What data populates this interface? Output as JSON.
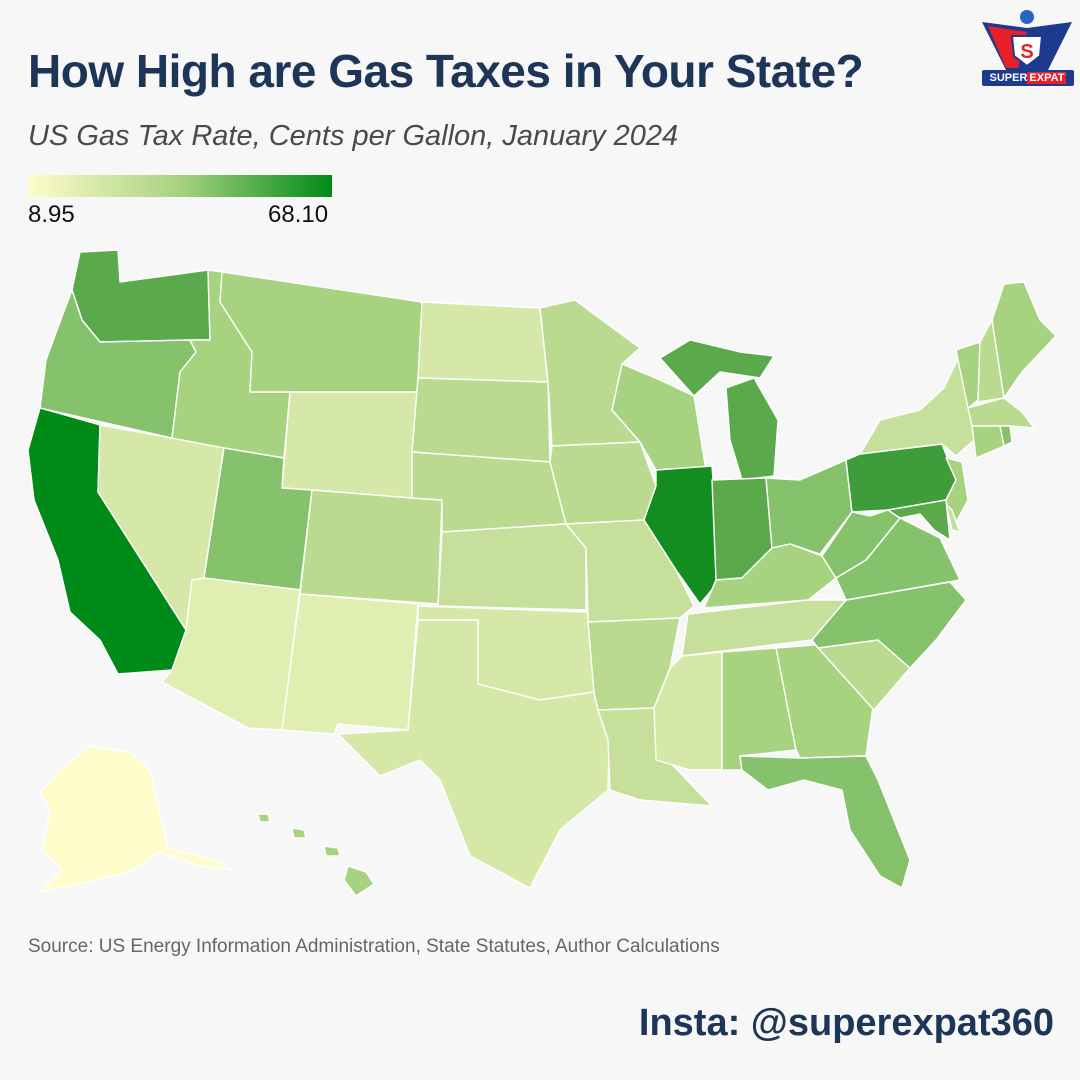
{
  "title": "How High are Gas Taxes in Your State?",
  "subtitle": "US Gas Tax Rate, Cents per Gallon, January 2024",
  "legend": {
    "min_label": "8.95",
    "max_label": "68.10",
    "min_value": 8.95,
    "max_value": 68.1,
    "min_color": "#fefccb",
    "mid_color": "#a7d27f",
    "max_color": "#008a17"
  },
  "logo": {
    "brand_part1": "SUPER",
    "brand_part2": "EXPAT"
  },
  "source": "Source: US Energy Information Administration, State Statutes, Author Calculations",
  "insta": "Insta: @superexpat360",
  "colors": {
    "title": "#1d3557",
    "background": "#f7f7f7",
    "state_border": "#ffffff"
  },
  "states": {
    "AK": "#fefccb",
    "HI": "#a7d27f",
    "WA": "#5aaa4c",
    "OR": "#86c26c",
    "CA": "#008a17",
    "NV": "#d6e8a8",
    "ID": "#a7d27f",
    "MT": "#a7d27f",
    "WY": "#d6e8a8",
    "UT": "#86c26c",
    "AZ": "#e0eeb1",
    "CO": "#b9da8f",
    "NM": "#e0eeb1",
    "ND": "#d6e8a8",
    "SD": "#b9da8f",
    "NE": "#b9da8f",
    "KS": "#c6e09b",
    "OK": "#d6e8a8",
    "TX": "#d6e8a8",
    "MN": "#b9da8f",
    "IA": "#b9da8f",
    "MO": "#c6e09b",
    "AR": "#b9da8f",
    "LA": "#c6e09b",
    "WI": "#a7d27f",
    "IL": "#138d1f",
    "MI": "#5aaa4c",
    "IN": "#5aaa4c",
    "OH": "#86c26c",
    "KY": "#a7d27f",
    "TN": "#c6e09b",
    "MS": "#d6e8a8",
    "AL": "#a7d27f",
    "GA": "#a7d27f",
    "FL": "#86c26c",
    "SC": "#b9da8f",
    "NC": "#86c26c",
    "VA": "#86c26c",
    "WV": "#86c26c",
    "PA": "#3f9c3a",
    "NY": "#c6e09b",
    "VT": "#a7d27f",
    "NH": "#b9da8f",
    "ME": "#a7d27f",
    "MA": "#b9da8f",
    "CT": "#a7d27f",
    "RI": "#86c26c",
    "NJ": "#a7d27f",
    "DE": "#c6e09b",
    "MD": "#5aaa4c"
  }
}
